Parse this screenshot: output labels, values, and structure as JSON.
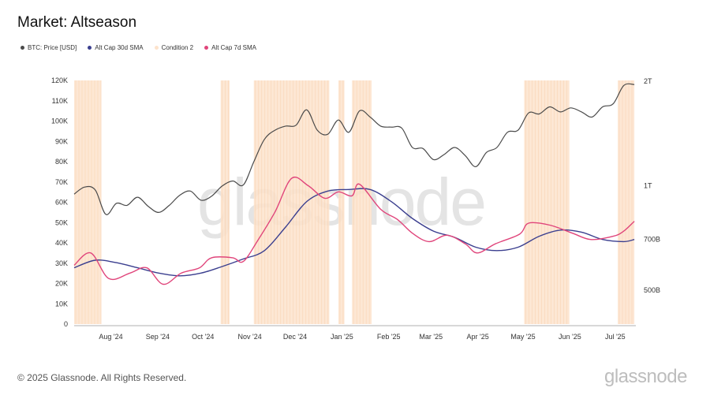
{
  "title": "Market: Altseason",
  "footer": "© 2025 Glassnode. All Rights Reserved.",
  "brand": "glassnode",
  "watermark": "glassnode",
  "colors": {
    "btc": "#4a4a4a",
    "alt30": "#3b3f8f",
    "condition": "#fde3cc",
    "alt7": "#e0457b"
  },
  "chart_data": {
    "type": "line",
    "title": "Market: Altseason",
    "legend": [
      {
        "name": "BTC: Price [USD]",
        "color": "#4a4a4a"
      },
      {
        "name": "Alt Cap 30d SMA",
        "color": "#3b3f8f"
      },
      {
        "name": "Condition 2",
        "color": "#fde3cc"
      },
      {
        "name": "Alt Cap 7d SMA",
        "color": "#e0457b"
      }
    ],
    "legend_position": "top-left",
    "x_ticks": [
      "Aug '24",
      "Sep '24",
      "Oct '24",
      "Nov '24",
      "Dec '24",
      "Jan '25",
      "Feb '25",
      "Mar '25",
      "Apr '25",
      "May '25",
      "Jun '25",
      "Jul '25"
    ],
    "x_start": "2024-07-15",
    "x_end": "2025-07-22",
    "y_left": {
      "ticks": [
        "0",
        "10K",
        "20K",
        "30K",
        "40K",
        "50K",
        "60K",
        "70K",
        "80K",
        "90K",
        "100K",
        "110K",
        "120K"
      ],
      "range": [
        0,
        120000
      ]
    },
    "y_right": {
      "ticks": [
        "500B",
        "700B",
        "1T",
        "2T"
      ],
      "values": [
        500,
        700,
        1000,
        2000
      ],
      "unit": "B",
      "scale": "log"
    },
    "condition_periods": [
      [
        "2024-07-15",
        "2024-08-02"
      ],
      [
        "2024-10-20",
        "2024-10-26"
      ],
      [
        "2024-11-11",
        "2024-12-31"
      ],
      [
        "2025-01-06",
        "2025-01-10"
      ],
      [
        "2025-01-15",
        "2025-01-28"
      ],
      [
        "2025-05-09",
        "2025-06-08"
      ],
      [
        "2025-07-10",
        "2025-07-21"
      ]
    ],
    "series": [
      {
        "name": "BTC: Price [USD]",
        "axis": "left",
        "points": [
          [
            "2024-07-15",
            64000
          ],
          [
            "2024-07-22",
            67500
          ],
          [
            "2024-07-29",
            66000
          ],
          [
            "2024-08-05",
            54000
          ],
          [
            "2024-08-12",
            59500
          ],
          [
            "2024-08-19",
            58500
          ],
          [
            "2024-08-26",
            62500
          ],
          [
            "2024-09-02",
            58000
          ],
          [
            "2024-09-09",
            55000
          ],
          [
            "2024-09-16",
            58500
          ],
          [
            "2024-09-23",
            63500
          ],
          [
            "2024-09-30",
            65500
          ],
          [
            "2024-10-07",
            61000
          ],
          [
            "2024-10-14",
            63000
          ],
          [
            "2024-10-21",
            68000
          ],
          [
            "2024-10-28",
            70500
          ],
          [
            "2024-11-04",
            68500
          ],
          [
            "2024-11-11",
            80000
          ],
          [
            "2024-11-18",
            91000
          ],
          [
            "2024-11-25",
            95500
          ],
          [
            "2024-12-02",
            97500
          ],
          [
            "2024-12-09",
            98000
          ],
          [
            "2024-12-16",
            105500
          ],
          [
            "2024-12-23",
            95500
          ],
          [
            "2024-12-30",
            93500
          ],
          [
            "2025-01-06",
            100500
          ],
          [
            "2025-01-13",
            94500
          ],
          [
            "2025-01-20",
            105000
          ],
          [
            "2025-01-27",
            102000
          ],
          [
            "2025-02-03",
            97500
          ],
          [
            "2025-02-10",
            97000
          ],
          [
            "2025-02-17",
            96500
          ],
          [
            "2025-02-24",
            87000
          ],
          [
            "2025-03-03",
            86500
          ],
          [
            "2025-03-10",
            81000
          ],
          [
            "2025-03-17",
            83500
          ],
          [
            "2025-03-24",
            87000
          ],
          [
            "2025-03-31",
            83000
          ],
          [
            "2025-04-07",
            77500
          ],
          [
            "2025-04-14",
            84500
          ],
          [
            "2025-04-21",
            87000
          ],
          [
            "2025-04-28",
            94500
          ],
          [
            "2025-05-05",
            95500
          ],
          [
            "2025-05-12",
            104000
          ],
          [
            "2025-05-19",
            103500
          ],
          [
            "2025-05-26",
            107000
          ],
          [
            "2025-06-02",
            104500
          ],
          [
            "2025-06-09",
            106500
          ],
          [
            "2025-06-16",
            104500
          ],
          [
            "2025-06-23",
            102000
          ],
          [
            "2025-06-30",
            107000
          ],
          [
            "2025-07-07",
            108500
          ],
          [
            "2025-07-14",
            117500
          ],
          [
            "2025-07-21",
            118000
          ]
        ]
      },
      {
        "name": "Alt Cap 30d SMA",
        "axis": "right",
        "points": [
          [
            "2024-07-15",
            580
          ],
          [
            "2024-07-29",
            610
          ],
          [
            "2024-08-12",
            600
          ],
          [
            "2024-08-26",
            580
          ],
          [
            "2024-09-09",
            560
          ],
          [
            "2024-09-23",
            550
          ],
          [
            "2024-10-07",
            560
          ],
          [
            "2024-10-21",
            585
          ],
          [
            "2024-11-04",
            615
          ],
          [
            "2024-11-18",
            650
          ],
          [
            "2024-12-02",
            760
          ],
          [
            "2024-12-16",
            900
          ],
          [
            "2024-12-30",
            965
          ],
          [
            "2025-01-13",
            975
          ],
          [
            "2025-01-27",
            975
          ],
          [
            "2025-02-10",
            900
          ],
          [
            "2025-02-24",
            805
          ],
          [
            "2025-03-10",
            740
          ],
          [
            "2025-03-24",
            710
          ],
          [
            "2025-04-07",
            665
          ],
          [
            "2025-04-21",
            650
          ],
          [
            "2025-05-05",
            665
          ],
          [
            "2025-05-19",
            715
          ],
          [
            "2025-06-02",
            745
          ],
          [
            "2025-06-16",
            735
          ],
          [
            "2025-06-30",
            700
          ],
          [
            "2025-07-14",
            690
          ],
          [
            "2025-07-21",
            700
          ]
        ]
      },
      {
        "name": "Alt Cap 7d SMA",
        "axis": "right",
        "points": [
          [
            "2024-07-15",
            590
          ],
          [
            "2024-07-26",
            640
          ],
          [
            "2024-08-07",
            540
          ],
          [
            "2024-08-21",
            560
          ],
          [
            "2024-09-01",
            580
          ],
          [
            "2024-09-12",
            520
          ],
          [
            "2024-09-24",
            560
          ],
          [
            "2024-10-06",
            580
          ],
          [
            "2024-10-14",
            620
          ],
          [
            "2024-10-28",
            620
          ],
          [
            "2024-11-04",
            605
          ],
          [
            "2024-11-14",
            700
          ],
          [
            "2024-11-25",
            840
          ],
          [
            "2024-12-06",
            1050
          ],
          [
            "2024-12-17",
            1000
          ],
          [
            "2024-12-28",
            920
          ],
          [
            "2025-01-06",
            960
          ],
          [
            "2025-01-15",
            935
          ],
          [
            "2025-01-20",
            1010
          ],
          [
            "2025-02-03",
            855
          ],
          [
            "2025-02-14",
            800
          ],
          [
            "2025-02-24",
            730
          ],
          [
            "2025-03-07",
            690
          ],
          [
            "2025-03-19",
            720
          ],
          [
            "2025-03-31",
            680
          ],
          [
            "2025-04-08",
            640
          ],
          [
            "2025-04-20",
            680
          ],
          [
            "2025-05-06",
            725
          ],
          [
            "2025-05-12",
            780
          ],
          [
            "2025-05-26",
            770
          ],
          [
            "2025-06-10",
            730
          ],
          [
            "2025-06-22",
            700
          ],
          [
            "2025-07-07",
            715
          ],
          [
            "2025-07-14",
            740
          ],
          [
            "2025-07-21",
            790
          ]
        ]
      }
    ]
  }
}
